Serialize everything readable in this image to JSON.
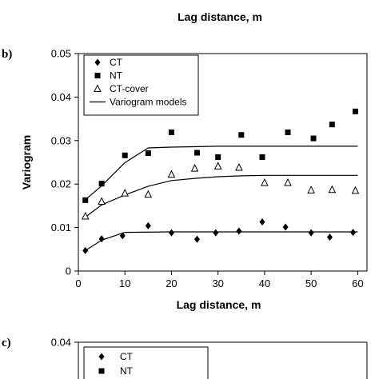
{
  "top_caption": "Lag distance, m",
  "chart_data": [
    {
      "type": "scatter",
      "panel_label": "b)",
      "xlabel": "Lag distance, m",
      "ylabel": "Variogram",
      "xlim": [
        0,
        62
      ],
      "ylim": [
        0,
        0.05
      ],
      "xticks": [
        "0",
        "10",
        "20",
        "30",
        "40",
        "50",
        "60"
      ],
      "yticks": [
        "0",
        "0.01",
        "0.02",
        "0.03",
        "0.04",
        "0.05"
      ],
      "legend_position": "top-left",
      "series": [
        {
          "name": "CT",
          "marker": "diamond",
          "points": [
            [
              1.5,
              0.0047
            ],
            [
              5,
              0.0074
            ],
            [
              9.5,
              0.0081
            ],
            [
              15,
              0.0104
            ],
            [
              20,
              0.0088
            ],
            [
              25.5,
              0.0073
            ],
            [
              29.5,
              0.0088
            ],
            [
              34.5,
              0.0092
            ],
            [
              39.5,
              0.0113
            ],
            [
              44.5,
              0.0101
            ],
            [
              50,
              0.0088
            ],
            [
              54,
              0.0078
            ],
            [
              59,
              0.0089
            ]
          ]
        },
        {
          "name": "NT",
          "marker": "square",
          "points": [
            [
              1.5,
              0.0163
            ],
            [
              5,
              0.0201
            ],
            [
              10,
              0.0266
            ],
            [
              15,
              0.0271
            ],
            [
              20,
              0.0319
            ],
            [
              25.5,
              0.0272
            ],
            [
              30,
              0.0262
            ],
            [
              35,
              0.0313
            ],
            [
              39.5,
              0.0262
            ],
            [
              45,
              0.0319
            ],
            [
              50.5,
              0.0305
            ],
            [
              54.5,
              0.0337
            ],
            [
              59.5,
              0.0367
            ]
          ]
        },
        {
          "name": "CT-cover",
          "marker": "triangle-open",
          "points": [
            [
              1.5,
              0.0126
            ],
            [
              5,
              0.016
            ],
            [
              10,
              0.0179
            ],
            [
              15,
              0.0176
            ],
            [
              20,
              0.0222
            ],
            [
              25,
              0.0236
            ],
            [
              30,
              0.0241
            ],
            [
              34.5,
              0.0238
            ],
            [
              40,
              0.0203
            ],
            [
              45,
              0.0203
            ],
            [
              50,
              0.0186
            ],
            [
              54.5,
              0.0187
            ],
            [
              59.5,
              0.0185
            ]
          ]
        },
        {
          "name": "Variogram models",
          "marker": "line",
          "lines": [
            [
              [
                1.5,
                0.0164
              ],
              [
                5,
                0.0196
              ],
              [
                10,
                0.0249
              ],
              [
                15,
                0.0283
              ],
              [
                20,
                0.0285
              ],
              [
                30,
                0.0287
              ],
              [
                40,
                0.0287
              ],
              [
                60,
                0.0287
              ]
            ],
            [
              [
                1.5,
                0.0124
              ],
              [
                5,
                0.0152
              ],
              [
                10,
                0.0175
              ],
              [
                15,
                0.0195
              ],
              [
                20,
                0.0208
              ],
              [
                25,
                0.0213
              ],
              [
                30,
                0.0217
              ],
              [
                35,
                0.0219
              ],
              [
                40,
                0.022
              ],
              [
                60,
                0.022
              ]
            ],
            [
              [
                1.5,
                0.0047
              ],
              [
                5,
                0.0071
              ],
              [
                10,
                0.0089
              ],
              [
                20,
                0.009
              ],
              [
                40,
                0.009
              ],
              [
                60,
                0.009
              ]
            ]
          ]
        }
      ]
    },
    {
      "type": "scatter",
      "panel_label": "c)",
      "ylim": [
        0,
        0.04
      ],
      "yticks": [
        "0.04"
      ],
      "legend_position": "top-left",
      "series": [
        {
          "name": "CT",
          "marker": "diamond"
        },
        {
          "name": "NT",
          "marker": "square"
        }
      ]
    }
  ]
}
